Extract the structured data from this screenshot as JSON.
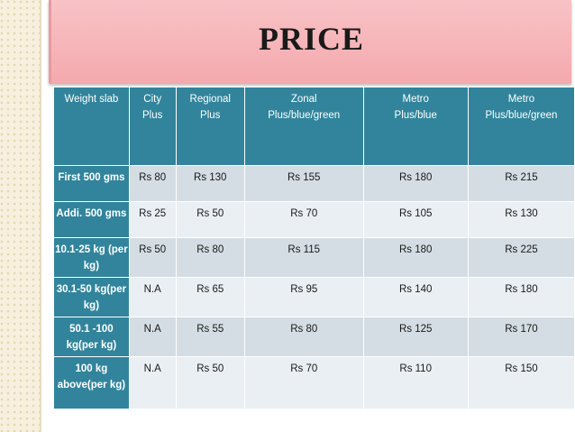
{
  "title": "PRICE",
  "table": {
    "headers": [
      [
        "Weight slab"
      ],
      [
        "City",
        "Plus"
      ],
      [
        "Regional",
        "Plus"
      ],
      [
        "Zonal",
        "Plus/blue/green"
      ],
      [
        "Metro",
        "Plus/blue"
      ],
      [
        "Metro",
        "Plus/blue/green"
      ]
    ],
    "rows": [
      {
        "slab": [
          "First 500 gms"
        ],
        "values": [
          "Rs 80",
          "Rs 130",
          "Rs 155",
          "Rs 180",
          "Rs 215"
        ]
      },
      {
        "slab": [
          "Addi. 500 gms"
        ],
        "values": [
          "Rs 25",
          "Rs 50",
          "Rs 70",
          "Rs 105",
          "Rs 130"
        ]
      },
      {
        "slab": [
          "10.1-25 kg (per",
          "kg)"
        ],
        "values": [
          "Rs 50",
          "Rs 80",
          "Rs 115",
          "Rs 180",
          "Rs 225"
        ]
      },
      {
        "slab": [
          "30.1-50 kg(per",
          "kg)"
        ],
        "values": [
          "N.A",
          "Rs 65",
          "Rs 95",
          "Rs 140",
          "Rs 180"
        ]
      },
      {
        "slab": [
          "50.1 -100",
          "kg(per kg)"
        ],
        "values": [
          "N.A",
          "Rs 55",
          "Rs 80",
          "Rs 125",
          "Rs 170"
        ]
      },
      {
        "slab": [
          "100 kg",
          "above(per kg)"
        ],
        "values": [
          "N.A",
          "Rs 50",
          "Rs 70",
          "Rs 110",
          "Rs 150"
        ]
      }
    ]
  },
  "colors": {
    "header_teal": "#31849b",
    "row_light": "#d3dde3",
    "row_white": "#eaeff3",
    "title_banner": "#f4a9ad"
  }
}
